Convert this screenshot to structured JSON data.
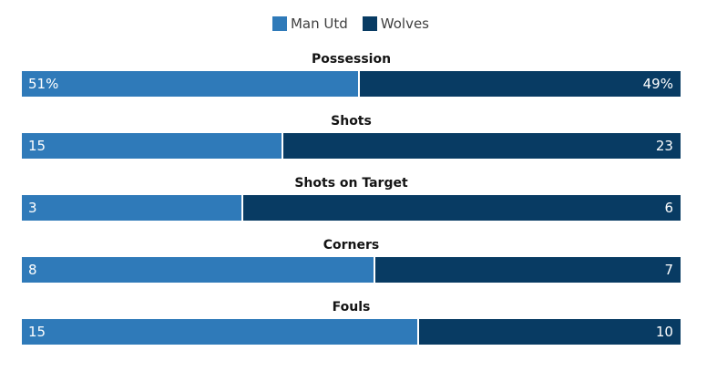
{
  "teams": {
    "home": {
      "name": "Man Utd",
      "color": "#2f7ab9"
    },
    "away": {
      "name": "Wolves",
      "color": "#083b63"
    }
  },
  "chart_data": {
    "type": "bar",
    "orientation": "horizontal-stacked-percent",
    "series": [
      {
        "name": "Man Utd",
        "values": [
          51,
          15,
          3,
          8,
          15
        ]
      },
      {
        "name": "Wolves",
        "values": [
          49,
          23,
          6,
          7,
          10
        ]
      }
    ],
    "categories": [
      "Possession",
      "Shots",
      "Shots on Target",
      "Corners",
      "Fouls"
    ],
    "legend": "top-center"
  },
  "stats": [
    {
      "label": "Possession",
      "home": 51,
      "away": 49,
      "home_text": "51%",
      "away_text": "49%"
    },
    {
      "label": "Shots",
      "home": 15,
      "away": 23,
      "home_text": "15",
      "away_text": "23"
    },
    {
      "label": "Shots on Target",
      "home": 3,
      "away": 6,
      "home_text": "3",
      "away_text": "6"
    },
    {
      "label": "Corners",
      "home": 8,
      "away": 7,
      "home_text": "8",
      "away_text": "7"
    },
    {
      "label": "Fouls",
      "home": 15,
      "away": 10,
      "home_text": "15",
      "away_text": "10"
    }
  ]
}
